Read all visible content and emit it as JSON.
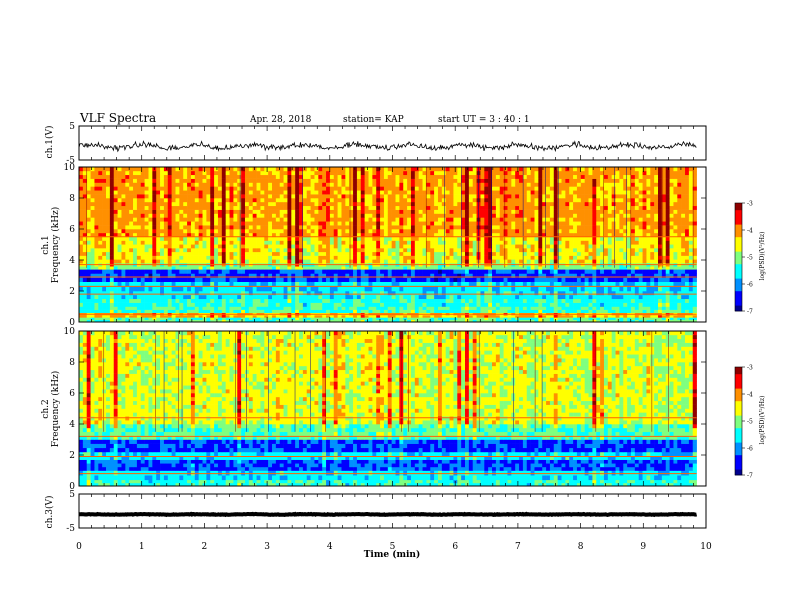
{
  "header": {
    "title": "VLF Spectra",
    "date": "Apr. 28, 2018",
    "station": "station= KAP",
    "start": "start  UT =   3  : 40 : 1"
  },
  "colors": {
    "colormap": [
      "#00008f",
      "#0000ff",
      "#0090ff",
      "#00ffff",
      "#7fff7f",
      "#ffff00",
      "#ff9000",
      "#ff0000",
      "#8f0000"
    ],
    "trace": "#000000"
  },
  "chart_data": [
    {
      "type": "line",
      "panel": "ch1-waveform",
      "ylabel": "ch.1(V)",
      "ylim": [
        -5,
        5
      ],
      "yticks": [
        "5",
        "-5"
      ],
      "xlim": [
        0,
        10
      ],
      "note_values": "noisy trace oscillating approximately between -3 and 1 V around about -1 V",
      "level": -1.0,
      "amplitude": 2.0
    },
    {
      "type": "heatmap",
      "panel": "ch1-spectrogram",
      "ylabel_top": "ch.1",
      "ylabel": "Frequency (kHz)",
      "ylim": [
        0,
        10
      ],
      "yticks": [
        "0",
        "2",
        "4",
        "6",
        "8",
        "10"
      ],
      "xlim": [
        0,
        10
      ],
      "colorbar": {
        "label": "log(PSD)(V²/Hz)",
        "range": [
          -7,
          -3
        ],
        "ticks": [
          "-3",
          "-4",
          "-5",
          "-6",
          "-7"
        ]
      },
      "bands": [
        {
          "from": 0,
          "to": 0.3,
          "level": 0.45
        },
        {
          "from": 0.3,
          "to": 0.6,
          "level": 0.7
        },
        {
          "from": 0.6,
          "to": 1.0,
          "level": 0.42
        },
        {
          "from": 1.0,
          "to": 1.5,
          "level": 0.4
        },
        {
          "from": 1.5,
          "to": 2.0,
          "level": 0.36
        },
        {
          "from": 2.0,
          "to": 2.6,
          "level": 0.32
        },
        {
          "from": 2.6,
          "to": 3.4,
          "level": 0.15
        },
        {
          "from": 3.4,
          "to": 3.8,
          "level": 0.5
        },
        {
          "from": 3.8,
          "to": 5.5,
          "level": 0.62
        },
        {
          "from": 5.5,
          "to": 10,
          "level": 0.72
        }
      ],
      "lines_khz": [
        0.5,
        1.8,
        2.3,
        2.9,
        3.7,
        5.5
      ]
    },
    {
      "type": "heatmap",
      "panel": "ch2-spectrogram",
      "ylabel_top": "ch.2",
      "ylabel": "Frequency (kHz)",
      "ylim": [
        0,
        10
      ],
      "yticks": [
        "0",
        "2",
        "4",
        "6",
        "8",
        "10"
      ],
      "xlim": [
        0,
        10
      ],
      "colorbar": {
        "label": "log(PSD)(V²/Hz)",
        "range": [
          -7,
          -3
        ],
        "ticks": [
          "-3",
          "-4",
          "-5",
          "-6",
          "-7"
        ]
      },
      "bands": [
        {
          "from": 0,
          "to": 0.4,
          "level": 0.4
        },
        {
          "from": 0.4,
          "to": 1.0,
          "level": 0.35
        },
        {
          "from": 1.0,
          "to": 1.7,
          "level": 0.18
        },
        {
          "from": 1.7,
          "to": 2.2,
          "level": 0.35
        },
        {
          "from": 2.2,
          "to": 3.0,
          "level": 0.16
        },
        {
          "from": 3.0,
          "to": 4.0,
          "level": 0.45
        },
        {
          "from": 4.0,
          "to": 10,
          "level": 0.58
        }
      ],
      "lines_khz": [
        0.8,
        1.9,
        3.2,
        4.4
      ]
    },
    {
      "type": "line",
      "panel": "ch3-waveform",
      "ylabel": "ch.3(V)",
      "ylim": [
        -5,
        5
      ],
      "yticks": [
        "5",
        "-5"
      ],
      "xlim": [
        0,
        10
      ],
      "level": -1.0,
      "amplitude": 0.2,
      "xlabel": "Time  (min)",
      "xticks": [
        "0",
        "1",
        "2",
        "3",
        "4",
        "5",
        "6",
        "7",
        "8",
        "9",
        "10"
      ]
    }
  ]
}
